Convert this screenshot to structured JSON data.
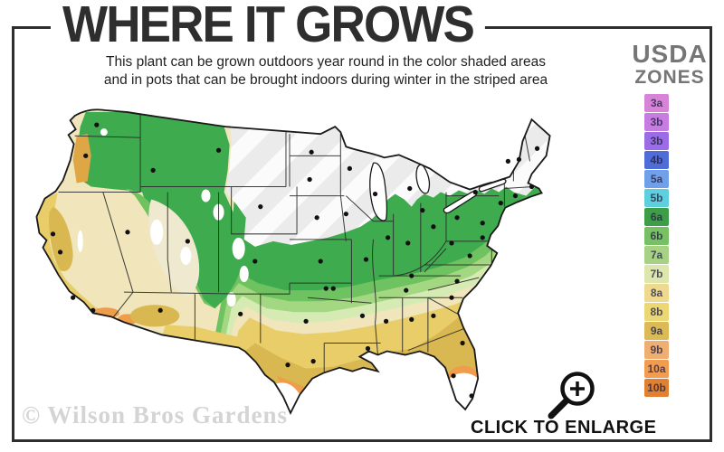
{
  "title": "WHERE IT GROWS",
  "subtitle": {
    "line1": "This plant can be grown outdoors year round in the color shaded areas",
    "line2": "and in pots that can be brought indoors during winter in the striped area"
  },
  "legend": {
    "heading_line1": "USDA",
    "heading_line2": "ZONES",
    "heading_color": "#767676",
    "zones": [
      {
        "label": "3a",
        "color": "#d784d8"
      },
      {
        "label": "3b",
        "color": "#c77ce2"
      },
      {
        "label": "3b",
        "color": "#9a6ce6"
      },
      {
        "label": "4b",
        "color": "#4f6cd8"
      },
      {
        "label": "5a",
        "color": "#70a0ea"
      },
      {
        "label": "5b",
        "color": "#5ecfdc"
      },
      {
        "label": "6a",
        "color": "#3e9e47"
      },
      {
        "label": "6b",
        "color": "#77c164"
      },
      {
        "label": "7a",
        "color": "#a8d283"
      },
      {
        "label": "7b",
        "color": "#dce6ad"
      },
      {
        "label": "8a",
        "color": "#eed98e"
      },
      {
        "label": "8b",
        "color": "#ecd775"
      },
      {
        "label": "9a",
        "color": "#dcba55"
      },
      {
        "label": "9b",
        "color": "#efae72"
      },
      {
        "label": "10a",
        "color": "#f29c52"
      },
      {
        "label": "10b",
        "color": "#e08030"
      }
    ]
  },
  "map": {
    "striped_region_color": "#ebebeb",
    "outline_color": "#1a1a1a",
    "band_colors": {
      "bright_green": "#3fab4f",
      "medium_green": "#6fc260",
      "light_green": "#a4d782",
      "pale_green": "#d6ebb4",
      "cream": "#f0e5bb",
      "yellow": "#e8cd68",
      "gold": "#d9b851",
      "orange": "#ef9d4b"
    }
  },
  "footer": {
    "watermark": "© Wilson Bros Gardens",
    "enlarge_label": "CLICK TO ENLARGE",
    "magnifier_icon": "magnifying-glass-plus"
  }
}
